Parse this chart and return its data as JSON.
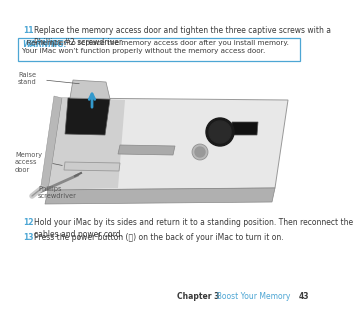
{
  "bg_color": "#ffffff",
  "step11_num": "11",
  "step11_text": "Replace the memory access door and tighten the three captive screws with a\nPhillips #2 screwdriver.",
  "warning_label": "WARNING:",
  "warning_text": "  Remember to replace the memory access door after you install memory.\nYour iMac won’t function properly without the memory access door.",
  "warning_box_color": "#4da6d4",
  "warning_box_fill": "#ffffff",
  "label_raise": "Raise\nstand",
  "label_memory": "Memory\naccess\ndoor",
  "label_phillips": "Phillips\nscrewdriver",
  "step12_num": "12",
  "step12_text": "Hold your iMac by its sides and return it to a standing position. Then reconnect the\ncables and power cord.",
  "step13_num": "13",
  "step13_text": "Press the power button (⌽) on the back of your iMac to turn it on.",
  "footer_chapter": "Chapter 3",
  "footer_section": "  Boost Your Memory",
  "footer_page": "43",
  "footer_section_color": "#4da6d4",
  "text_color": "#3a3a3a",
  "num_color": "#4da6d4",
  "label_color": "#555555",
  "fontsize_body": 5.5,
  "fontsize_label": 4.8,
  "fontsize_footer": 5.5,
  "fontsize_warning_label": 5.5,
  "imac_silver_light": "#e8e8e8",
  "imac_silver_mid": "#d0d0d0",
  "imac_silver_dark": "#b0b0b0",
  "imac_black": "#1a1a1a",
  "imac_edge": "#999999",
  "arrow_blue": "#3399cc"
}
